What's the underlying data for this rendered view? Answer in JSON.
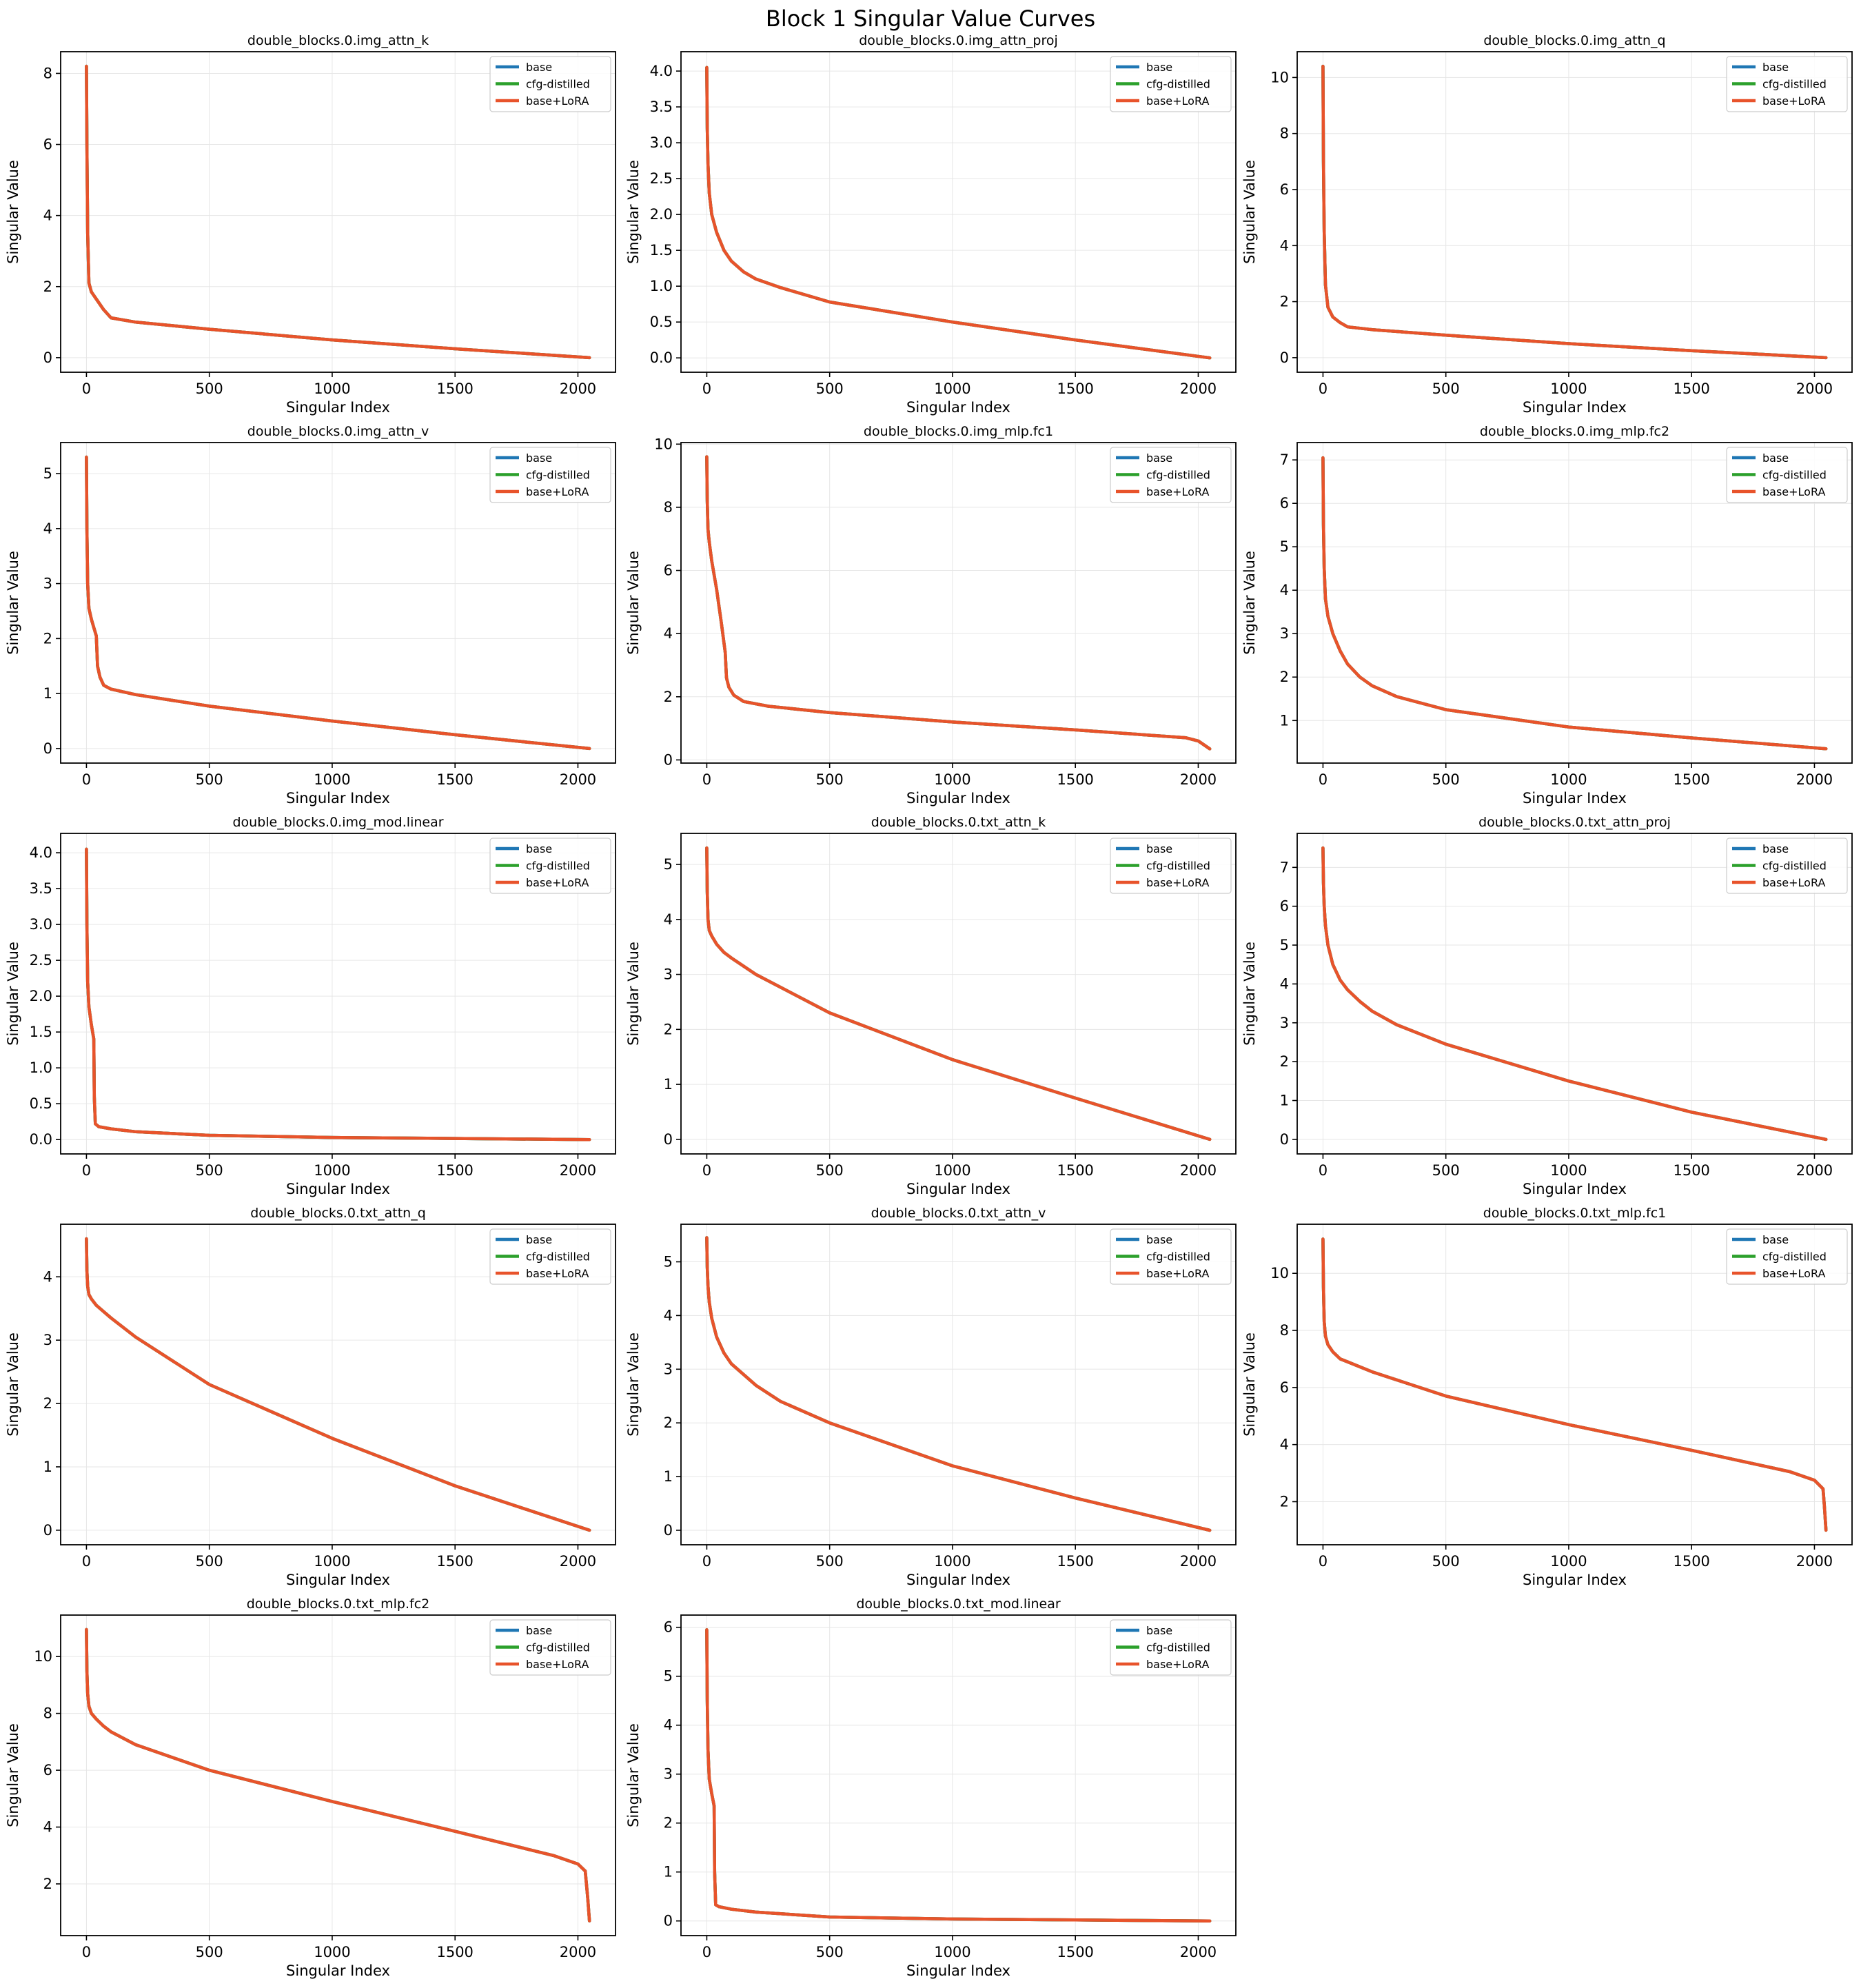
{
  "figure": {
    "title": "Block 1 Singular Value Curves"
  },
  "colors": {
    "base": "#1f77b4",
    "cfg-distilled": "#2ca02c",
    "base+LoRA": "#e8532b"
  },
  "chart_data": [
    {
      "type": "line",
      "title": "double_blocks.0.img_attn_k",
      "xlabel": "Singular Index",
      "ylabel": "Singular Value",
      "xlim": [
        -105,
        2153
      ],
      "ylim": [
        -0.41,
        8.61
      ],
      "xticks": [
        0,
        500,
        1000,
        1500,
        2000
      ],
      "yticks": [
        0,
        2,
        4,
        6,
        8
      ],
      "ytick_labels": [
        "0",
        "2",
        "4",
        "6",
        "8"
      ],
      "grid": true,
      "legend_location": "upper right",
      "series": [
        {
          "name": "base"
        },
        {
          "name": "cfg-distilled"
        },
        {
          "name": "base+LoRA"
        }
      ],
      "x": [
        0,
        2,
        5,
        10,
        20,
        40,
        70,
        100,
        200,
        500,
        1000,
        1500,
        2047
      ],
      "values": [
        8.2,
        6.0,
        3.5,
        2.1,
        1.85,
        1.65,
        1.35,
        1.12,
        1.0,
        0.8,
        0.5,
        0.25,
        0.0
      ]
    },
    {
      "type": "line",
      "title": "double_blocks.0.img_attn_proj",
      "xlabel": "Singular Index",
      "ylabel": "Singular Value",
      "xlim": [
        -105,
        2153
      ],
      "ylim": [
        -0.2,
        4.27
      ],
      "xticks": [
        0,
        500,
        1000,
        1500,
        2000
      ],
      "yticks": [
        0,
        0.5,
        1,
        1.5,
        2,
        2.5,
        3,
        3.5,
        4
      ],
      "ytick_labels": [
        "0.0",
        "0.5",
        "1.0",
        "1.5",
        "2.0",
        "2.5",
        "3.0",
        "3.5",
        "4.0"
      ],
      "grid": true,
      "legend_location": "upper right",
      "series": [
        {
          "name": "base"
        },
        {
          "name": "cfg-distilled"
        },
        {
          "name": "base+LoRA"
        }
      ],
      "x": [
        0,
        2,
        5,
        10,
        20,
        40,
        70,
        100,
        150,
        200,
        300,
        500,
        1000,
        1500,
        2047
      ],
      "values": [
        4.05,
        3.2,
        2.7,
        2.3,
        2.0,
        1.75,
        1.5,
        1.35,
        1.2,
        1.1,
        0.98,
        0.78,
        0.5,
        0.25,
        0.0
      ]
    },
    {
      "type": "line",
      "title": "double_blocks.0.img_attn_q",
      "xlabel": "Singular Index",
      "ylabel": "Singular Value",
      "xlim": [
        -105,
        2153
      ],
      "ylim": [
        -0.52,
        10.92
      ],
      "xticks": [
        0,
        500,
        1000,
        1500,
        2000
      ],
      "yticks": [
        0,
        2,
        4,
        6,
        8,
        10
      ],
      "ytick_labels": [
        "0",
        "2",
        "4",
        "6",
        "8",
        "10"
      ],
      "grid": true,
      "legend_location": "upper right",
      "series": [
        {
          "name": "base"
        },
        {
          "name": "cfg-distilled"
        },
        {
          "name": "base+LoRA"
        }
      ],
      "x": [
        0,
        2,
        5,
        10,
        20,
        40,
        70,
        100,
        200,
        500,
        1000,
        1500,
        2047
      ],
      "values": [
        10.4,
        7.0,
        4.5,
        2.6,
        1.8,
        1.45,
        1.25,
        1.1,
        1.0,
        0.8,
        0.5,
        0.25,
        0.0
      ]
    },
    {
      "type": "line",
      "title": "double_blocks.0.img_attn_v",
      "xlabel": "Singular Index",
      "ylabel": "Singular Value",
      "xlim": [
        -105,
        2153
      ],
      "ylim": [
        -0.265,
        5.565
      ],
      "xticks": [
        0,
        500,
        1000,
        1500,
        2000
      ],
      "yticks": [
        0,
        1,
        2,
        3,
        4,
        5
      ],
      "ytick_labels": [
        "0",
        "1",
        "2",
        "3",
        "4",
        "5"
      ],
      "grid": true,
      "legend_location": "upper right",
      "series": [
        {
          "name": "base"
        },
        {
          "name": "cfg-distilled"
        },
        {
          "name": "base+LoRA"
        }
      ],
      "x": [
        0,
        2,
        5,
        10,
        20,
        30,
        40,
        45,
        55,
        70,
        100,
        200,
        500,
        1000,
        1500,
        2047
      ],
      "values": [
        5.3,
        4.0,
        3.0,
        2.55,
        2.35,
        2.2,
        2.05,
        1.5,
        1.3,
        1.15,
        1.08,
        0.98,
        0.77,
        0.5,
        0.25,
        0.0
      ]
    },
    {
      "type": "line",
      "title": "double_blocks.0.img_mlp.fc1",
      "xlabel": "Singular Index",
      "ylabel": "Singular Value",
      "xlim": [
        -105,
        2153
      ],
      "ylim": [
        -0.1,
        10.05
      ],
      "xticks": [
        0,
        500,
        1000,
        1500,
        2000
      ],
      "yticks": [
        0,
        2,
        4,
        6,
        8,
        10
      ],
      "ytick_labels": [
        "0",
        "2",
        "4",
        "6",
        "8",
        "10"
      ],
      "grid": true,
      "legend_location": "upper right",
      "series": [
        {
          "name": "base"
        },
        {
          "name": "cfg-distilled"
        },
        {
          "name": "base+LoRA"
        }
      ],
      "x": [
        0,
        2,
        5,
        10,
        20,
        40,
        60,
        75,
        80,
        90,
        110,
        150,
        250,
        500,
        1000,
        1500,
        1950,
        2000,
        2047
      ],
      "values": [
        9.6,
        8.2,
        7.3,
        6.9,
        6.3,
        5.4,
        4.3,
        3.4,
        2.6,
        2.3,
        2.05,
        1.85,
        1.7,
        1.5,
        1.2,
        0.95,
        0.7,
        0.6,
        0.35
      ]
    },
    {
      "type": "line",
      "title": "double_blocks.0.img_mlp.fc2",
      "xlabel": "Singular Index",
      "ylabel": "Singular Value",
      "xlim": [
        -105,
        2153
      ],
      "ylim": [
        0.02,
        7.4
      ],
      "xticks": [
        0,
        500,
        1000,
        1500,
        2000
      ],
      "yticks": [
        1,
        2,
        3,
        4,
        5,
        6,
        7
      ],
      "ytick_labels": [
        "1",
        "2",
        "3",
        "4",
        "5",
        "6",
        "7"
      ],
      "grid": true,
      "legend_location": "upper right",
      "series": [
        {
          "name": "base"
        },
        {
          "name": "cfg-distilled"
        },
        {
          "name": "base+LoRA"
        }
      ],
      "x": [
        0,
        2,
        5,
        10,
        20,
        40,
        70,
        100,
        150,
        200,
        300,
        500,
        1000,
        1500,
        2047
      ],
      "values": [
        7.05,
        5.5,
        4.5,
        3.8,
        3.4,
        3.0,
        2.6,
        2.3,
        2.0,
        1.8,
        1.55,
        1.25,
        0.85,
        0.6,
        0.35
      ]
    },
    {
      "type": "line",
      "title": "double_blocks.0.img_mod.linear",
      "xlabel": "Singular Index",
      "ylabel": "Singular Value",
      "xlim": [
        -105,
        2153
      ],
      "ylim": [
        -0.2,
        4.27
      ],
      "xticks": [
        0,
        500,
        1000,
        1500,
        2000
      ],
      "yticks": [
        0,
        0.5,
        1,
        1.5,
        2,
        2.5,
        3,
        3.5,
        4
      ],
      "ytick_labels": [
        "0.0",
        "0.5",
        "1.0",
        "1.5",
        "2.0",
        "2.5",
        "3.0",
        "3.5",
        "4.0"
      ],
      "grid": true,
      "legend_location": "upper right",
      "series": [
        {
          "name": "base"
        },
        {
          "name": "cfg-distilled"
        },
        {
          "name": "base+LoRA"
        }
      ],
      "x": [
        0,
        2,
        5,
        10,
        20,
        30,
        32,
        36,
        50,
        100,
        200,
        500,
        1000,
        1500,
        2047
      ],
      "values": [
        4.05,
        3.0,
        2.2,
        1.85,
        1.6,
        1.4,
        0.6,
        0.22,
        0.18,
        0.15,
        0.11,
        0.06,
        0.03,
        0.015,
        0.0
      ]
    },
    {
      "type": "line",
      "title": "double_blocks.0.txt_attn_k",
      "xlabel": "Singular Index",
      "ylabel": "Singular Value",
      "xlim": [
        -105,
        2153
      ],
      "ylim": [
        -0.265,
        5.565
      ],
      "xticks": [
        0,
        500,
        1000,
        1500,
        2000
      ],
      "yticks": [
        0,
        1,
        2,
        3,
        4,
        5
      ],
      "ytick_labels": [
        "0",
        "1",
        "2",
        "3",
        "4",
        "5"
      ],
      "grid": true,
      "legend_location": "upper right",
      "series": [
        {
          "name": "base"
        },
        {
          "name": "cfg-distilled"
        },
        {
          "name": "base+LoRA"
        }
      ],
      "x": [
        0,
        2,
        5,
        10,
        20,
        40,
        70,
        100,
        200,
        500,
        1000,
        1500,
        2047
      ],
      "values": [
        5.3,
        4.5,
        4.0,
        3.8,
        3.7,
        3.55,
        3.4,
        3.3,
        3.0,
        2.3,
        1.45,
        0.75,
        0.0
      ]
    },
    {
      "type": "line",
      "title": "double_blocks.0.txt_attn_proj",
      "xlabel": "Singular Index",
      "ylabel": "Singular Value",
      "xlim": [
        -105,
        2153
      ],
      "ylim": [
        -0.375,
        7.875
      ],
      "xticks": [
        0,
        500,
        1000,
        1500,
        2000
      ],
      "yticks": [
        0,
        1,
        2,
        3,
        4,
        5,
        6,
        7
      ],
      "ytick_labels": [
        "0",
        "1",
        "2",
        "3",
        "4",
        "5",
        "6",
        "7"
      ],
      "grid": true,
      "legend_location": "upper right",
      "series": [
        {
          "name": "base"
        },
        {
          "name": "cfg-distilled"
        },
        {
          "name": "base+LoRA"
        }
      ],
      "x": [
        0,
        2,
        5,
        10,
        20,
        40,
        70,
        100,
        150,
        200,
        300,
        500,
        1000,
        1500,
        2047
      ],
      "values": [
        7.5,
        6.6,
        6.0,
        5.5,
        5.0,
        4.5,
        4.1,
        3.85,
        3.55,
        3.3,
        2.95,
        2.45,
        1.5,
        0.7,
        0.0
      ]
    },
    {
      "type": "line",
      "title": "double_blocks.0.txt_attn_q",
      "xlabel": "Singular Index",
      "ylabel": "Singular Value",
      "xlim": [
        -105,
        2153
      ],
      "ylim": [
        -0.23,
        4.83
      ],
      "xticks": [
        0,
        500,
        1000,
        1500,
        2000
      ],
      "yticks": [
        0,
        1,
        2,
        3,
        4
      ],
      "ytick_labels": [
        "0",
        "1",
        "2",
        "3",
        "4"
      ],
      "grid": true,
      "legend_location": "upper right",
      "series": [
        {
          "name": "base"
        },
        {
          "name": "cfg-distilled"
        },
        {
          "name": "base+LoRA"
        }
      ],
      "x": [
        0,
        2,
        5,
        10,
        20,
        40,
        70,
        100,
        200,
        500,
        1000,
        1500,
        2047
      ],
      "values": [
        4.6,
        4.1,
        3.85,
        3.72,
        3.65,
        3.55,
        3.45,
        3.35,
        3.05,
        2.3,
        1.45,
        0.7,
        0.0
      ]
    },
    {
      "type": "line",
      "title": "double_blocks.0.txt_attn_v",
      "xlabel": "Singular Index",
      "ylabel": "Singular Value",
      "xlim": [
        -105,
        2153
      ],
      "ylim": [
        -0.27,
        5.7
      ],
      "xticks": [
        0,
        500,
        1000,
        1500,
        2000
      ],
      "yticks": [
        0,
        1,
        2,
        3,
        4,
        5
      ],
      "ytick_labels": [
        "0",
        "1",
        "2",
        "3",
        "4",
        "5"
      ],
      "grid": true,
      "legend_location": "upper right",
      "series": [
        {
          "name": "base"
        },
        {
          "name": "cfg-distilled"
        },
        {
          "name": "base+LoRA"
        }
      ],
      "x": [
        0,
        2,
        5,
        10,
        20,
        40,
        70,
        100,
        150,
        200,
        300,
        500,
        1000,
        1500,
        2047
      ],
      "values": [
        5.45,
        4.9,
        4.55,
        4.25,
        3.95,
        3.6,
        3.3,
        3.1,
        2.9,
        2.7,
        2.4,
        2.0,
        1.2,
        0.6,
        0.0
      ]
    },
    {
      "type": "line",
      "title": "double_blocks.0.txt_mlp.fc1",
      "xlabel": "Singular Index",
      "ylabel": "Singular Value",
      "xlim": [
        -105,
        2153
      ],
      "ylim": [
        0.49,
        11.72
      ],
      "xticks": [
        0,
        500,
        1000,
        1500,
        2000
      ],
      "yticks": [
        2,
        4,
        6,
        8,
        10
      ],
      "ytick_labels": [
        "2",
        "4",
        "6",
        "8",
        "10"
      ],
      "grid": true,
      "legend_location": "upper right",
      "series": [
        {
          "name": "base"
        },
        {
          "name": "cfg-distilled"
        },
        {
          "name": "base+LoRA"
        }
      ],
      "x": [
        0,
        2,
        5,
        10,
        20,
        40,
        70,
        100,
        200,
        500,
        1000,
        1500,
        1900,
        2000,
        2035,
        2040,
        2047
      ],
      "values": [
        11.2,
        9.5,
        8.3,
        7.8,
        7.5,
        7.25,
        7.0,
        6.9,
        6.55,
        5.7,
        4.7,
        3.8,
        3.05,
        2.75,
        2.45,
        1.9,
        1.0
      ]
    },
    {
      "type": "line",
      "title": "double_blocks.0.txt_mlp.fc2",
      "xlabel": "Singular Index",
      "ylabel": "Singular Value",
      "xlim": [
        -105,
        2153
      ],
      "ylim": [
        0.18,
        11.46
      ],
      "xticks": [
        0,
        500,
        1000,
        1500,
        2000
      ],
      "yticks": [
        2,
        4,
        6,
        8,
        10
      ],
      "ytick_labels": [
        "2",
        "4",
        "6",
        "8",
        "10"
      ],
      "grid": true,
      "legend_location": "upper right",
      "series": [
        {
          "name": "base"
        },
        {
          "name": "cfg-distilled"
        },
        {
          "name": "base+LoRA"
        }
      ],
      "x": [
        0,
        2,
        5,
        10,
        20,
        40,
        70,
        100,
        200,
        500,
        1000,
        1500,
        1900,
        2000,
        2030,
        2040,
        2047
      ],
      "values": [
        10.95,
        9.5,
        8.7,
        8.25,
        8.0,
        7.8,
        7.55,
        7.35,
        6.9,
        6.0,
        4.9,
        3.85,
        3.0,
        2.7,
        2.45,
        1.5,
        0.7
      ]
    },
    {
      "type": "line",
      "title": "double_blocks.0.txt_mod.linear",
      "xlabel": "Singular Index",
      "ylabel": "Singular Value",
      "xlim": [
        -105,
        2153
      ],
      "ylim": [
        -0.3,
        6.25
      ],
      "xticks": [
        0,
        500,
        1000,
        1500,
        2000
      ],
      "yticks": [
        0,
        1,
        2,
        3,
        4,
        5,
        6
      ],
      "ytick_labels": [
        "0",
        "1",
        "2",
        "3",
        "4",
        "5",
        "6"
      ],
      "grid": true,
      "legend_location": "upper right",
      "series": [
        {
          "name": "base"
        },
        {
          "name": "cfg-distilled"
        },
        {
          "name": "base+LoRA"
        }
      ],
      "x": [
        0,
        2,
        5,
        10,
        20,
        30,
        32,
        36,
        50,
        100,
        200,
        500,
        1000,
        1500,
        2047
      ],
      "values": [
        5.95,
        4.5,
        3.5,
        2.9,
        2.6,
        2.35,
        1.0,
        0.33,
        0.29,
        0.24,
        0.18,
        0.08,
        0.04,
        0.02,
        0.0
      ]
    }
  ]
}
